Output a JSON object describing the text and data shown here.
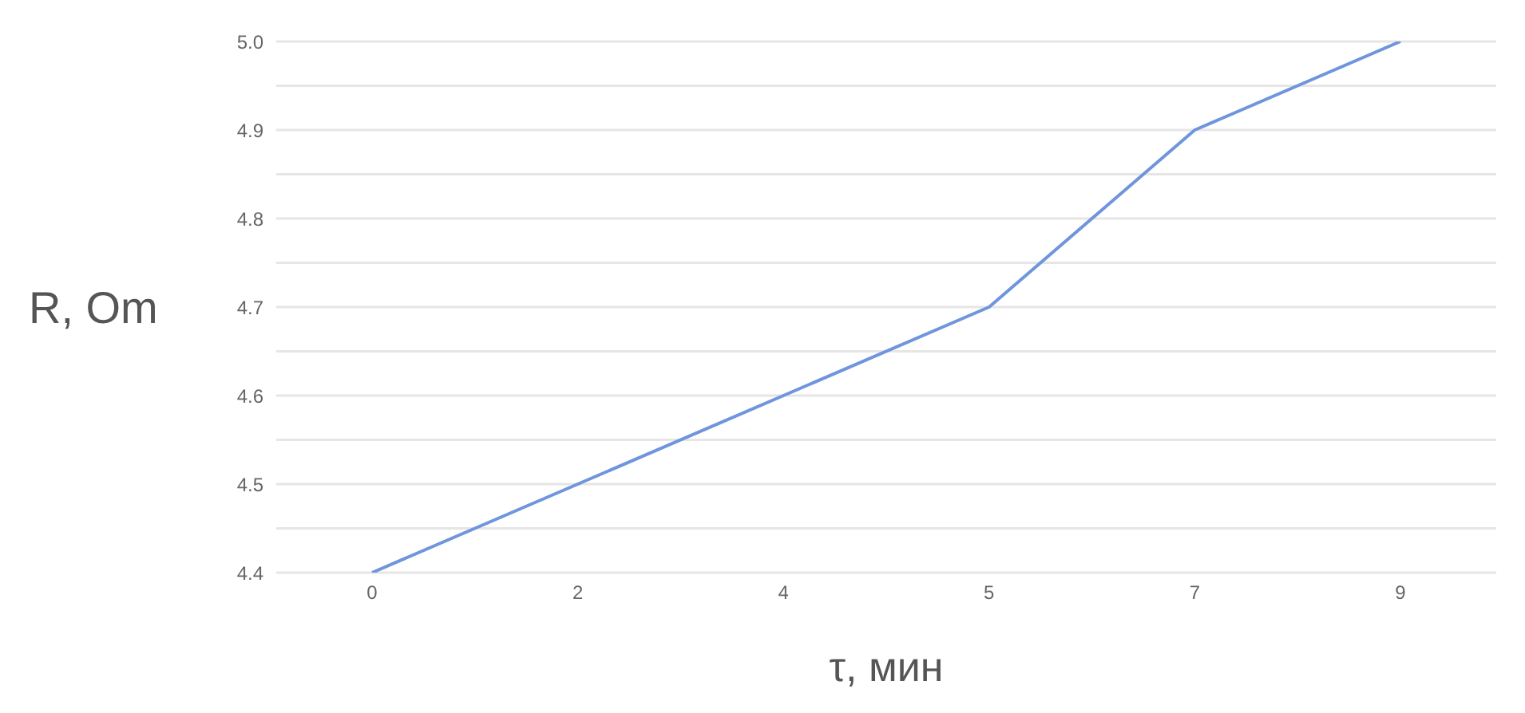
{
  "chart_data": {
    "type": "line",
    "xlabel": "τ, мин",
    "ylabel": "R, Om",
    "categories": [
      "0",
      "2",
      "4",
      "5",
      "7",
      "9"
    ],
    "series": [
      {
        "color": "#6f95dc",
        "values": [
          4.4,
          4.5,
          4.6,
          4.7,
          4.9,
          5.0
        ]
      }
    ],
    "ylim": [
      4.4,
      5.0
    ],
    "yticks": [
      {
        "value": 4.4,
        "label": "4.4"
      },
      {
        "value": 4.45,
        "label": null
      },
      {
        "value": 4.5,
        "label": "4.5"
      },
      {
        "value": 4.55,
        "label": null
      },
      {
        "value": 4.6,
        "label": "4.6"
      },
      {
        "value": 4.65,
        "label": null
      },
      {
        "value": 4.7,
        "label": "4.7"
      },
      {
        "value": 4.75,
        "label": null
      },
      {
        "value": 4.8,
        "label": "4.8"
      },
      {
        "value": 4.85,
        "label": null
      },
      {
        "value": 4.9,
        "label": "4.9"
      },
      {
        "value": 4.95,
        "label": null
      },
      {
        "value": 5.0,
        "label": "5.0"
      }
    ],
    "grid": "y",
    "marker": "none",
    "line_style": "solid",
    "legend": false
  }
}
